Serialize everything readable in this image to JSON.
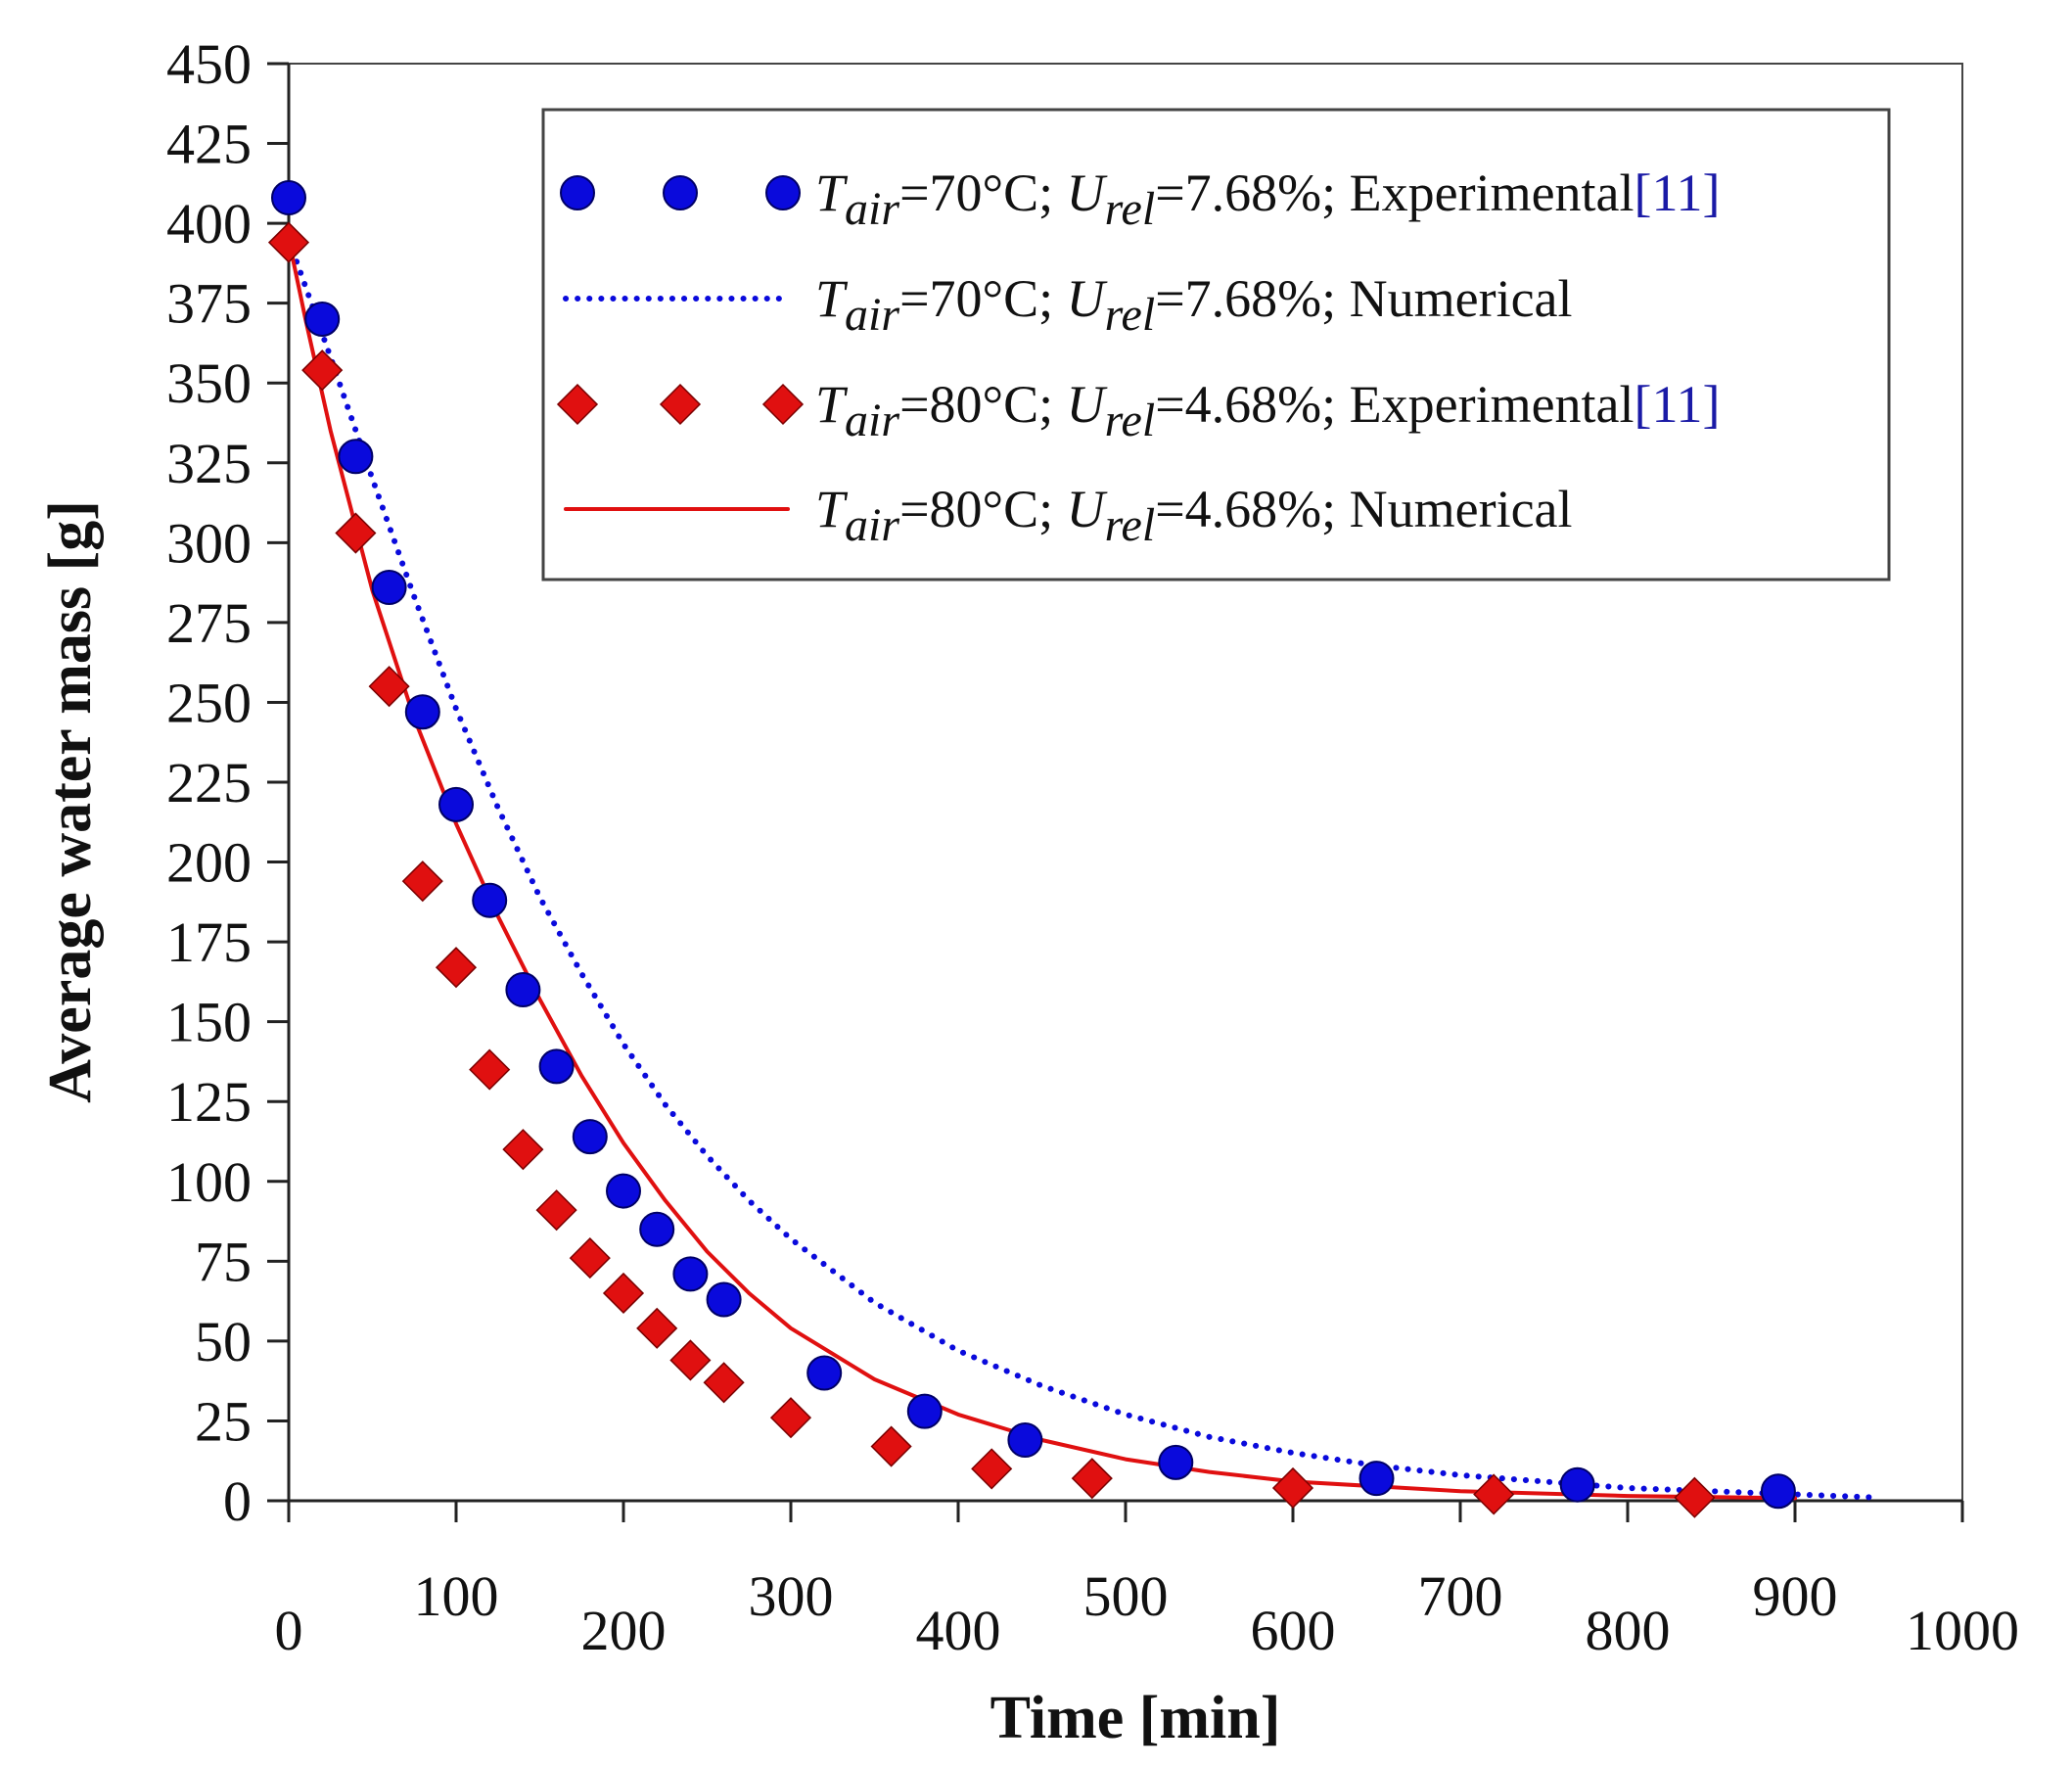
{
  "chart_data": {
    "type": "scatter",
    "xlabel": "Time [min]",
    "ylabel": "Average water mass [g]",
    "xlim": [
      0,
      1000
    ],
    "ylim": [
      0,
      450
    ],
    "x_ticks": [
      0,
      100,
      200,
      300,
      400,
      500,
      600,
      700,
      800,
      900,
      1000
    ],
    "y_ticks": [
      0,
      25,
      50,
      75,
      100,
      125,
      150,
      175,
      200,
      225,
      250,
      275,
      300,
      325,
      350,
      375,
      400,
      425,
      450
    ],
    "grid": false,
    "legend_position": "top-right",
    "series": [
      {
        "name": "Tair=70°C; Urel=7.68%; Experimental[11]",
        "legend": {
          "T_sub": "air",
          "T_value": "=70°C; ",
          "U_sub": "rel",
          "U_value": "=7.68%; Experimental",
          "ref": "[11]"
        },
        "kind": "scatter",
        "marker": "circle",
        "color": "#0a0adc",
        "points": [
          [
            0,
            408
          ],
          [
            20,
            370
          ],
          [
            40,
            327
          ],
          [
            60,
            286
          ],
          [
            80,
            247
          ],
          [
            100,
            218
          ],
          [
            120,
            188
          ],
          [
            140,
            160
          ],
          [
            160,
            136
          ],
          [
            180,
            114
          ],
          [
            200,
            97
          ],
          [
            220,
            85
          ],
          [
            240,
            71
          ],
          [
            260,
            63
          ],
          [
            320,
            40
          ],
          [
            380,
            28
          ],
          [
            440,
            19
          ],
          [
            530,
            12
          ],
          [
            650,
            7
          ],
          [
            770,
            5
          ],
          [
            890,
            3
          ]
        ]
      },
      {
        "name": "Tair=70°C; Urel=7.68%; Numerical",
        "legend": {
          "T_sub": "air",
          "T_value": "=70°C; ",
          "U_sub": "rel",
          "U_value": "=7.68%; Numerical",
          "ref": ""
        },
        "kind": "line",
        "style": "dotted",
        "color": "#0a0adc",
        "points": [
          [
            0,
            395
          ],
          [
            25,
            358
          ],
          [
            50,
            320
          ],
          [
            75,
            283
          ],
          [
            100,
            248
          ],
          [
            125,
            217
          ],
          [
            150,
            189
          ],
          [
            175,
            165
          ],
          [
            200,
            143
          ],
          [
            225,
            124
          ],
          [
            250,
            108
          ],
          [
            275,
            94
          ],
          [
            300,
            82
          ],
          [
            350,
            62
          ],
          [
            400,
            47
          ],
          [
            450,
            36
          ],
          [
            500,
            27
          ],
          [
            550,
            20
          ],
          [
            600,
            15
          ],
          [
            650,
            11
          ],
          [
            700,
            8
          ],
          [
            750,
            6
          ],
          [
            800,
            4
          ],
          [
            850,
            3
          ],
          [
            900,
            2
          ],
          [
            950,
            1
          ]
        ]
      },
      {
        "name": "Tair=80°C; Urel=4.68%; Experimental[11]",
        "legend": {
          "T_sub": "air",
          "T_value": "=80°C; ",
          "U_sub": "rel",
          "U_value": "=4.68%; Experimental",
          "ref": "[11]"
        },
        "kind": "scatter",
        "marker": "diamond",
        "color": "#e01010",
        "points": [
          [
            0,
            394
          ],
          [
            20,
            354
          ],
          [
            40,
            303
          ],
          [
            60,
            255
          ],
          [
            80,
            194
          ],
          [
            100,
            167
          ],
          [
            120,
            135
          ],
          [
            140,
            110
          ],
          [
            160,
            91
          ],
          [
            180,
            76
          ],
          [
            200,
            65
          ],
          [
            220,
            54
          ],
          [
            240,
            44
          ],
          [
            260,
            37
          ],
          [
            300,
            26
          ],
          [
            360,
            17
          ],
          [
            420,
            10
          ],
          [
            480,
            7
          ],
          [
            600,
            4
          ],
          [
            720,
            2
          ],
          [
            840,
            1
          ]
        ]
      },
      {
        "name": "Tair=80°C; Urel=4.68%; Numerical",
        "legend": {
          "T_sub": "air",
          "T_value": "=80°C; ",
          "U_sub": "rel",
          "U_value": "=4.68%; Numerical",
          "ref": ""
        },
        "kind": "line",
        "style": "solid",
        "color": "#e01010",
        "points": [
          [
            0,
            395
          ],
          [
            10,
            370
          ],
          [
            25,
            335
          ],
          [
            50,
            285
          ],
          [
            75,
            245
          ],
          [
            100,
            212
          ],
          [
            125,
            183
          ],
          [
            150,
            157
          ],
          [
            175,
            133
          ],
          [
            200,
            112
          ],
          [
            225,
            94
          ],
          [
            250,
            78
          ],
          [
            275,
            65
          ],
          [
            300,
            54
          ],
          [
            350,
            38
          ],
          [
            400,
            27
          ],
          [
            450,
            19
          ],
          [
            500,
            13
          ],
          [
            550,
            9
          ],
          [
            600,
            6
          ],
          [
            700,
            3
          ],
          [
            800,
            1.5
          ],
          [
            900,
            0.8
          ]
        ]
      }
    ]
  }
}
